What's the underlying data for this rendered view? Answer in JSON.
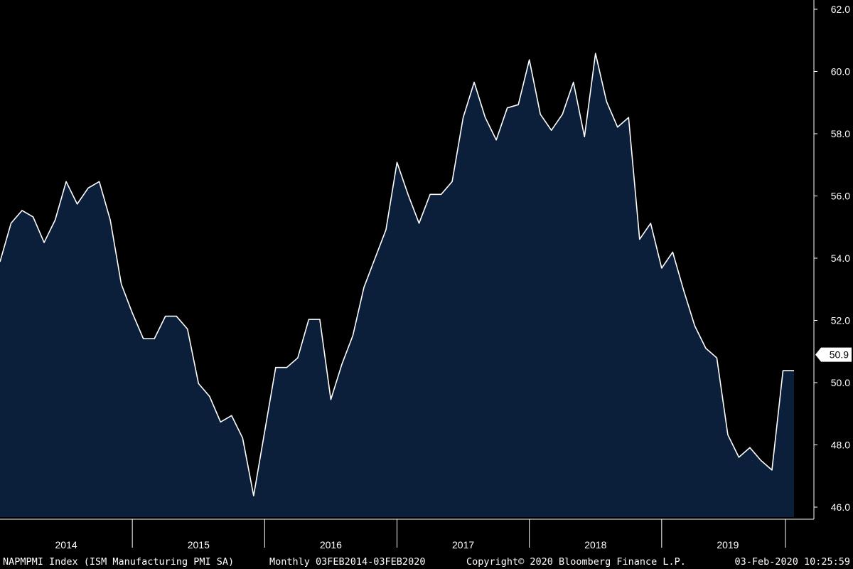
{
  "chart_data": {
    "type": "area",
    "ylim": [
      46.0,
      62.0
    ],
    "y_ticks": [
      "46.0",
      "48.0",
      "50.0",
      "52.0",
      "54.0",
      "56.0",
      "58.0",
      "60.0",
      "62.0"
    ],
    "x_year_labels": [
      "2014",
      "2015",
      "2016",
      "2017",
      "2018",
      "2019"
    ],
    "last_value_label": "50.9",
    "colors": {
      "background": "#000000",
      "fill": "#0b1f3a",
      "line": "#ffffff",
      "axis": "#ffffff"
    },
    "grid": false,
    "series": [
      {
        "x": [
          "2014-01",
          "2014-02",
          "2014-03",
          "2014-04",
          "2014-05",
          "2014-06",
          "2014-07",
          "2014-08",
          "2014-09",
          "2014-10",
          "2014-11",
          "2014-12",
          "2015-01",
          "2015-02",
          "2015-03",
          "2015-04",
          "2015-05",
          "2015-06",
          "2015-07",
          "2015-08",
          "2015-09",
          "2015-10",
          "2015-11",
          "2015-12",
          "2016-01",
          "2016-02",
          "2016-03",
          "2016-04",
          "2016-05",
          "2016-06",
          "2016-07",
          "2016-08",
          "2016-09",
          "2016-10",
          "2016-11",
          "2016-12",
          "2017-01",
          "2017-02",
          "2017-03",
          "2017-04",
          "2017-05",
          "2017-06",
          "2017-07",
          "2017-08",
          "2017-09",
          "2017-10",
          "2017-11",
          "2017-12",
          "2018-01",
          "2018-02",
          "2018-03",
          "2018-04",
          "2018-05",
          "2018-06",
          "2018-07",
          "2018-08",
          "2018-09",
          "2018-10",
          "2018-11",
          "2018-12",
          "2019-01",
          "2019-02",
          "2019-03",
          "2019-04",
          "2019-05",
          "2019-06",
          "2019-07",
          "2019-08",
          "2019-09",
          "2019-10",
          "2019-11",
          "2019-12",
          "2020-01"
        ],
        "values": [
          54.3,
          55.5,
          55.9,
          55.7,
          54.9,
          55.6,
          56.8,
          56.1,
          56.6,
          56.8,
          55.6,
          53.6,
          52.7,
          51.9,
          51.9,
          52.6,
          52.6,
          52.2,
          50.5,
          50.1,
          49.3,
          49.5,
          48.8,
          47.0,
          49.0,
          51.0,
          51.0,
          51.3,
          52.5,
          52.5,
          50.0,
          51.1,
          52.0,
          53.5,
          54.4,
          55.3,
          57.4,
          56.4,
          55.5,
          56.4,
          56.4,
          56.8,
          58.8,
          59.9,
          58.8,
          58.1,
          59.1,
          59.2,
          60.6,
          58.9,
          58.4,
          58.9,
          59.9,
          58.2,
          60.8,
          59.3,
          58.5,
          58.8,
          55.0,
          55.5,
          54.1,
          54.6,
          53.4,
          52.3,
          51.6,
          51.3,
          48.9,
          48.2,
          48.5,
          48.1,
          47.8,
          50.9,
          50.9
        ]
      }
    ]
  },
  "footer": {
    "ticker": "NAPMPMI Index (ISM Manufacturing PMI SA)",
    "range": "Monthly 03FEB2014-03FEB2020",
    "copyright": "Copyright© 2020 Bloomberg Finance L.P.",
    "timestamp": "03-Feb-2020 10:25:59"
  }
}
